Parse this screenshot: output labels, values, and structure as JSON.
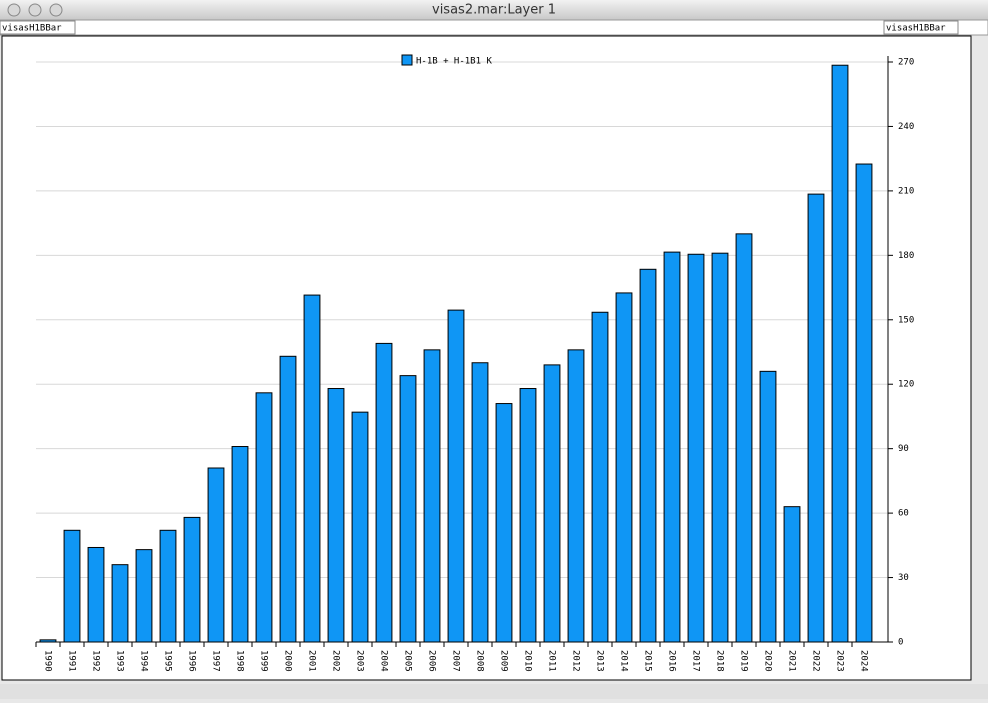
{
  "window": {
    "title": "visas2.mar:Layer 1",
    "left_label": "visasH1BBar",
    "right_label": "visasH1BBar"
  },
  "chart_data": {
    "type": "bar",
    "categories": [
      "1990",
      "1991",
      "1992",
      "1993",
      "1994",
      "1995",
      "1996",
      "1997",
      "1998",
      "1999",
      "2000",
      "2001",
      "2002",
      "2003",
      "2004",
      "2005",
      "2006",
      "2007",
      "2008",
      "2009",
      "2010",
      "2011",
      "2012",
      "2013",
      "2014",
      "2015",
      "2016",
      "2017",
      "2018",
      "2019",
      "2020",
      "2021",
      "2022",
      "2023",
      "2024"
    ],
    "series": [
      {
        "name": "H-1B + H-1B1 K",
        "color": "#0f96f5",
        "values": [
          1,
          52,
          44,
          36,
          43,
          52,
          58,
          81,
          91,
          116,
          133,
          161.5,
          118,
          107,
          139,
          124,
          136,
          154.5,
          130,
          111,
          118,
          129,
          136,
          153.5,
          162.5,
          173.5,
          181.5,
          180.5,
          181,
          190,
          126,
          63,
          208.5,
          268.5,
          222.5
        ]
      }
    ],
    "ylim": [
      0,
      270
    ],
    "yticks": [
      0,
      30,
      60,
      90,
      120,
      150,
      180,
      210,
      240,
      270
    ],
    "grid": true,
    "y_axis_side": "right",
    "legend": "top"
  }
}
